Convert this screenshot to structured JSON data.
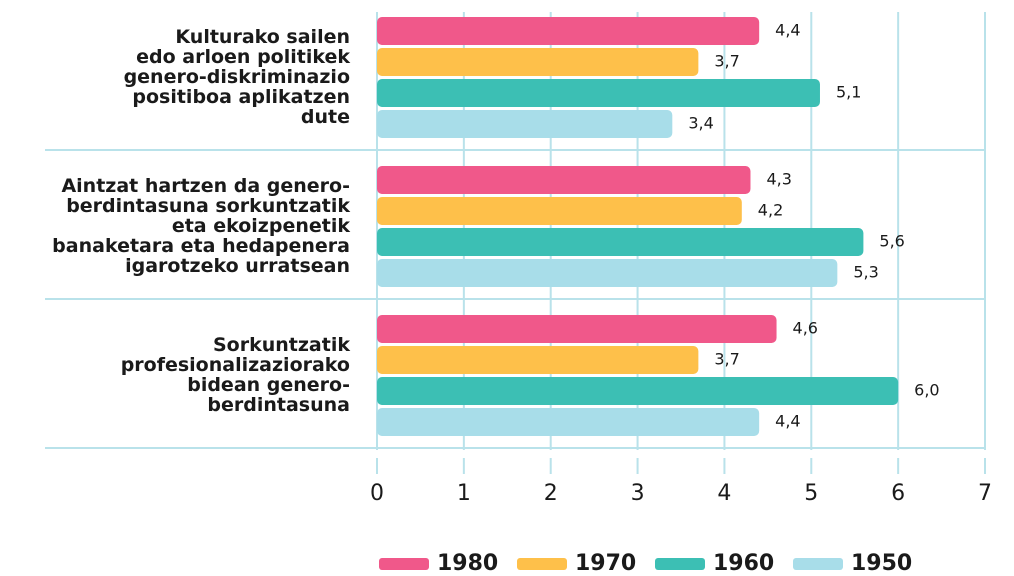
{
  "chart_data": {
    "type": "hbar",
    "categories": [
      [
        "Kulturako sailen",
        "edo arloen politikek",
        "genero-diskriminazio",
        "positiboa aplikatzen",
        "dute"
      ],
      [
        "Aintzat hartzen da genero-",
        "berdintasuna sorkuntzatik",
        "eta ekoizpenetik",
        "banaketara eta hedapenera",
        "igarotzeko urratsean"
      ],
      [
        "Sorkuntzatik",
        "profesionalizaziorako",
        "bidean genero-",
        "berdintasuna"
      ]
    ],
    "series": [
      {
        "name": "1980",
        "color": "#f0588a",
        "values": [
          4.4,
          4.3,
          4.6
        ],
        "value_labels": [
          "4,4",
          "4,3",
          "4,6"
        ]
      },
      {
        "name": "1970",
        "color": "#fec04a",
        "values": [
          3.7,
          4.2,
          3.7
        ],
        "value_labels": [
          "3,7",
          "4,2",
          "3,7"
        ]
      },
      {
        "name": "1960",
        "color": "#3cbfb4",
        "values": [
          5.1,
          5.6,
          6.0
        ],
        "value_labels": [
          "5,1",
          "5,6",
          "6,0"
        ]
      },
      {
        "name": "1950",
        "color": "#a8dde9",
        "values": [
          3.4,
          5.3,
          4.4
        ],
        "value_labels": [
          "3,4",
          "5,3",
          "4,4"
        ]
      }
    ],
    "xlim": [
      0,
      7
    ],
    "xticks": [
      0,
      1,
      2,
      3,
      4,
      5,
      6,
      7
    ],
    "grid": true,
    "legend": "bottom"
  }
}
